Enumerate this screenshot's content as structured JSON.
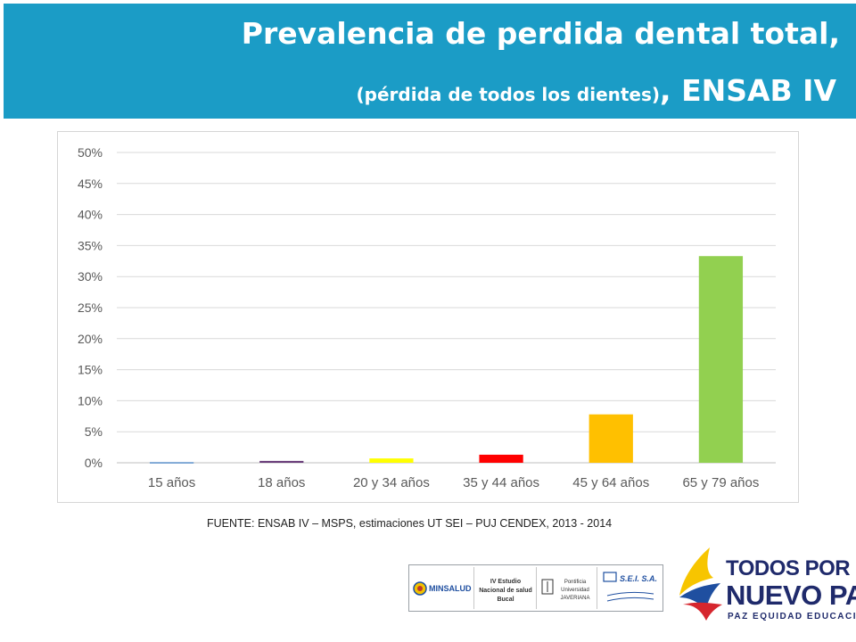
{
  "header": {
    "title_line1": "Prevalencia de perdida dental total,",
    "title_line2_small": "(pérdida de todos los dientes)",
    "title_line2_big": ", ENSAB IV",
    "bg_color": "#1b9cc6"
  },
  "chart_data": {
    "type": "bar",
    "categories": [
      "15 años",
      "18 años",
      "20 y 34 años",
      "35 y 44 años",
      "45 y 64 años",
      "65 y 79 años"
    ],
    "values": [
      0.1,
      0.3,
      0.7,
      1.3,
      7.8,
      33.3
    ],
    "colors": [
      "#5b8fc9",
      "#6a3d7a",
      "#ffff00",
      "#ff0000",
      "#ffc000",
      "#92d050"
    ],
    "ylim": [
      0,
      50
    ],
    "yticks": [
      "0%",
      "5%",
      "10%",
      "15%",
      "20%",
      "25%",
      "30%",
      "35%",
      "40%",
      "45%",
      "50%"
    ],
    "grid": true,
    "title": "",
    "xlabel": "",
    "ylabel": ""
  },
  "source": "FUENTE: ENSAB IV – MSPS, estimaciones UT SEI – PUJ CENDEX, 2013 - 2014",
  "logos": {
    "minsalud": "MINSALUD",
    "estudio": "IV Estudio Nacional de salud Bucal",
    "javeriana": "Pontificia Universidad JAVERIANA",
    "sei": "S.E.I. S.A."
  },
  "brand": {
    "line1": "TODOS POR UN",
    "line2": "NUEVO PAÍS",
    "line3": "PAZ EQUIDAD EDUCACIÓN"
  }
}
